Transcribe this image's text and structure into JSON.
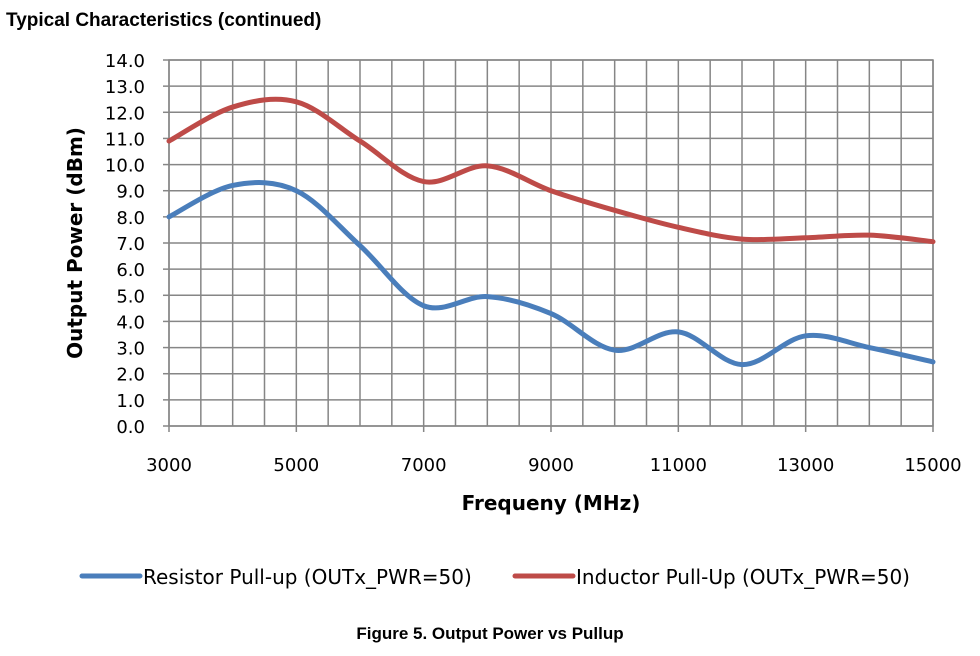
{
  "section_title": "Typical Characteristics (continued)",
  "figure_caption": "Figure 5. Output Power vs Pullup",
  "chart_data": {
    "type": "line",
    "title": "",
    "xlabel": "Frequeny (MHz)",
    "ylabel": "Output Power (dBm)",
    "xlim": [
      3000,
      15000
    ],
    "ylim": [
      0,
      14
    ],
    "x_ticks": [
      "3000",
      "5000",
      "7000",
      "9000",
      "11000",
      "13000",
      "15000"
    ],
    "y_ticks": [
      "0.0",
      "1.0",
      "2.0",
      "3.0",
      "4.0",
      "5.0",
      "6.0",
      "7.0",
      "8.0",
      "9.0",
      "10.0",
      "11.0",
      "12.0",
      "13.0",
      "14.0"
    ],
    "grid": true,
    "legend_position": "bottom",
    "x": [
      3000,
      4000,
      5000,
      6000,
      7000,
      8000,
      9000,
      10000,
      11000,
      12000,
      13000,
      14000,
      15000
    ],
    "series": [
      {
        "name": "Resistor Pull-up (OUTx_PWR=50)",
        "color": "#4a7ebb",
        "values": [
          8.0,
          9.2,
          9.0,
          6.9,
          4.6,
          4.95,
          4.3,
          2.9,
          3.6,
          2.35,
          3.45,
          3.0,
          2.45
        ]
      },
      {
        "name": "Inductor Pull-Up (OUTx_PWR=50)",
        "color": "#be4b48",
        "values": [
          10.9,
          12.2,
          12.4,
          10.9,
          9.35,
          9.95,
          9.0,
          8.25,
          7.6,
          7.15,
          7.2,
          7.3,
          7.05
        ]
      }
    ]
  }
}
